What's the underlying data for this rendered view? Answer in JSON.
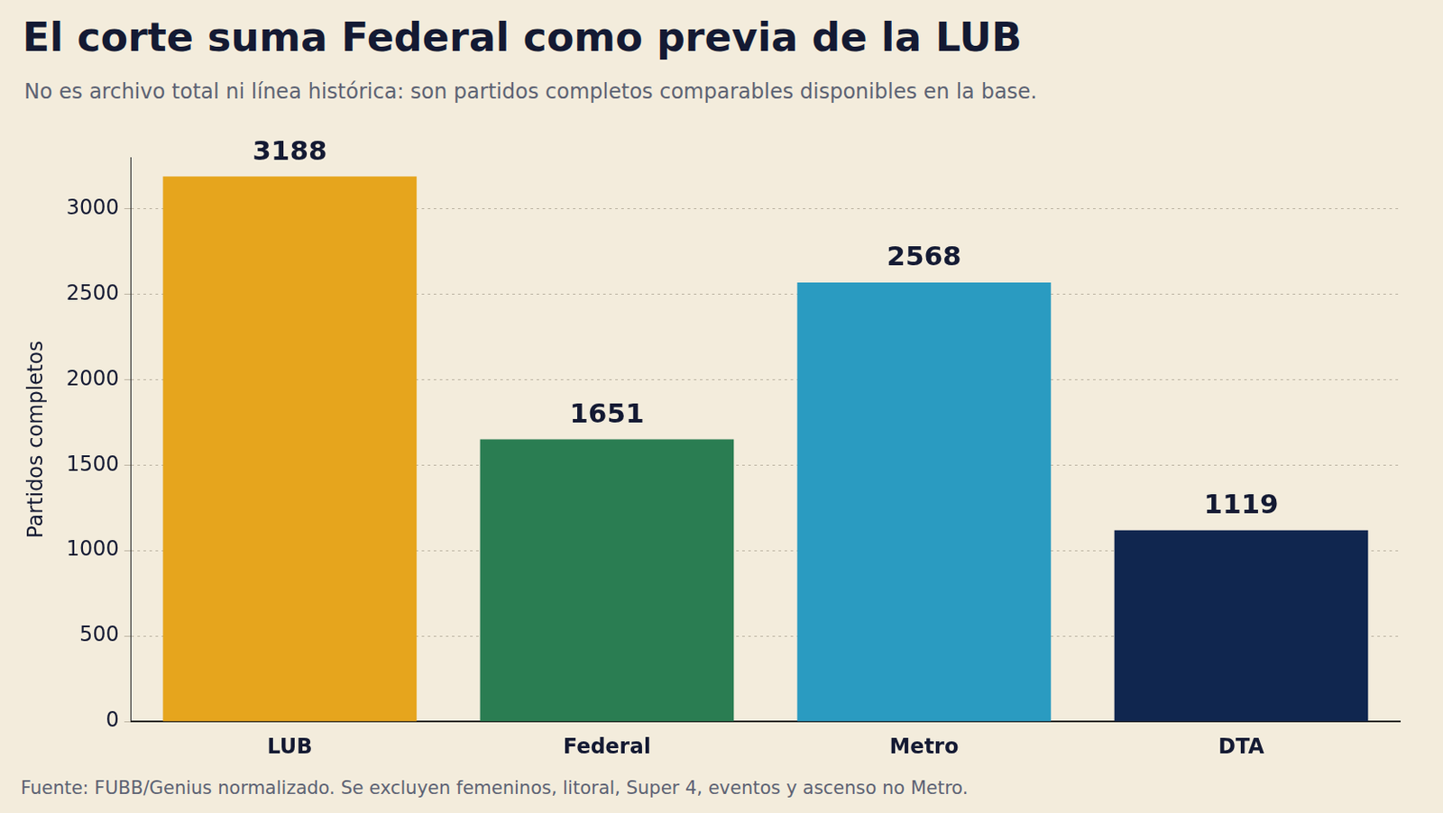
{
  "chart_data": {
    "type": "bar",
    "title": "El corte suma Federal como previa de la LUB",
    "subtitle": "No es archivo total ni línea histórica: son partidos completos comparables disponibles en la base.",
    "footnote": "Fuente: FUBB/Genius normalizado. Se excluyen femeninos, litoral, Super 4, eventos y ascenso no Metro.",
    "y_label": "Partidos completos",
    "categories": [
      "LUB",
      "Federal",
      "Metro",
      "DTA"
    ],
    "values": [
      3188,
      1651,
      2568,
      1119
    ],
    "colors": [
      "#e6a51d",
      "#2a7d52",
      "#2a9bc1",
      "#10264f"
    ],
    "ylim": [
      0,
      3300
    ],
    "yticks": [
      0,
      500,
      1000,
      1500,
      2000,
      2500,
      3000
    ],
    "grid": true,
    "data_labels": true
  }
}
